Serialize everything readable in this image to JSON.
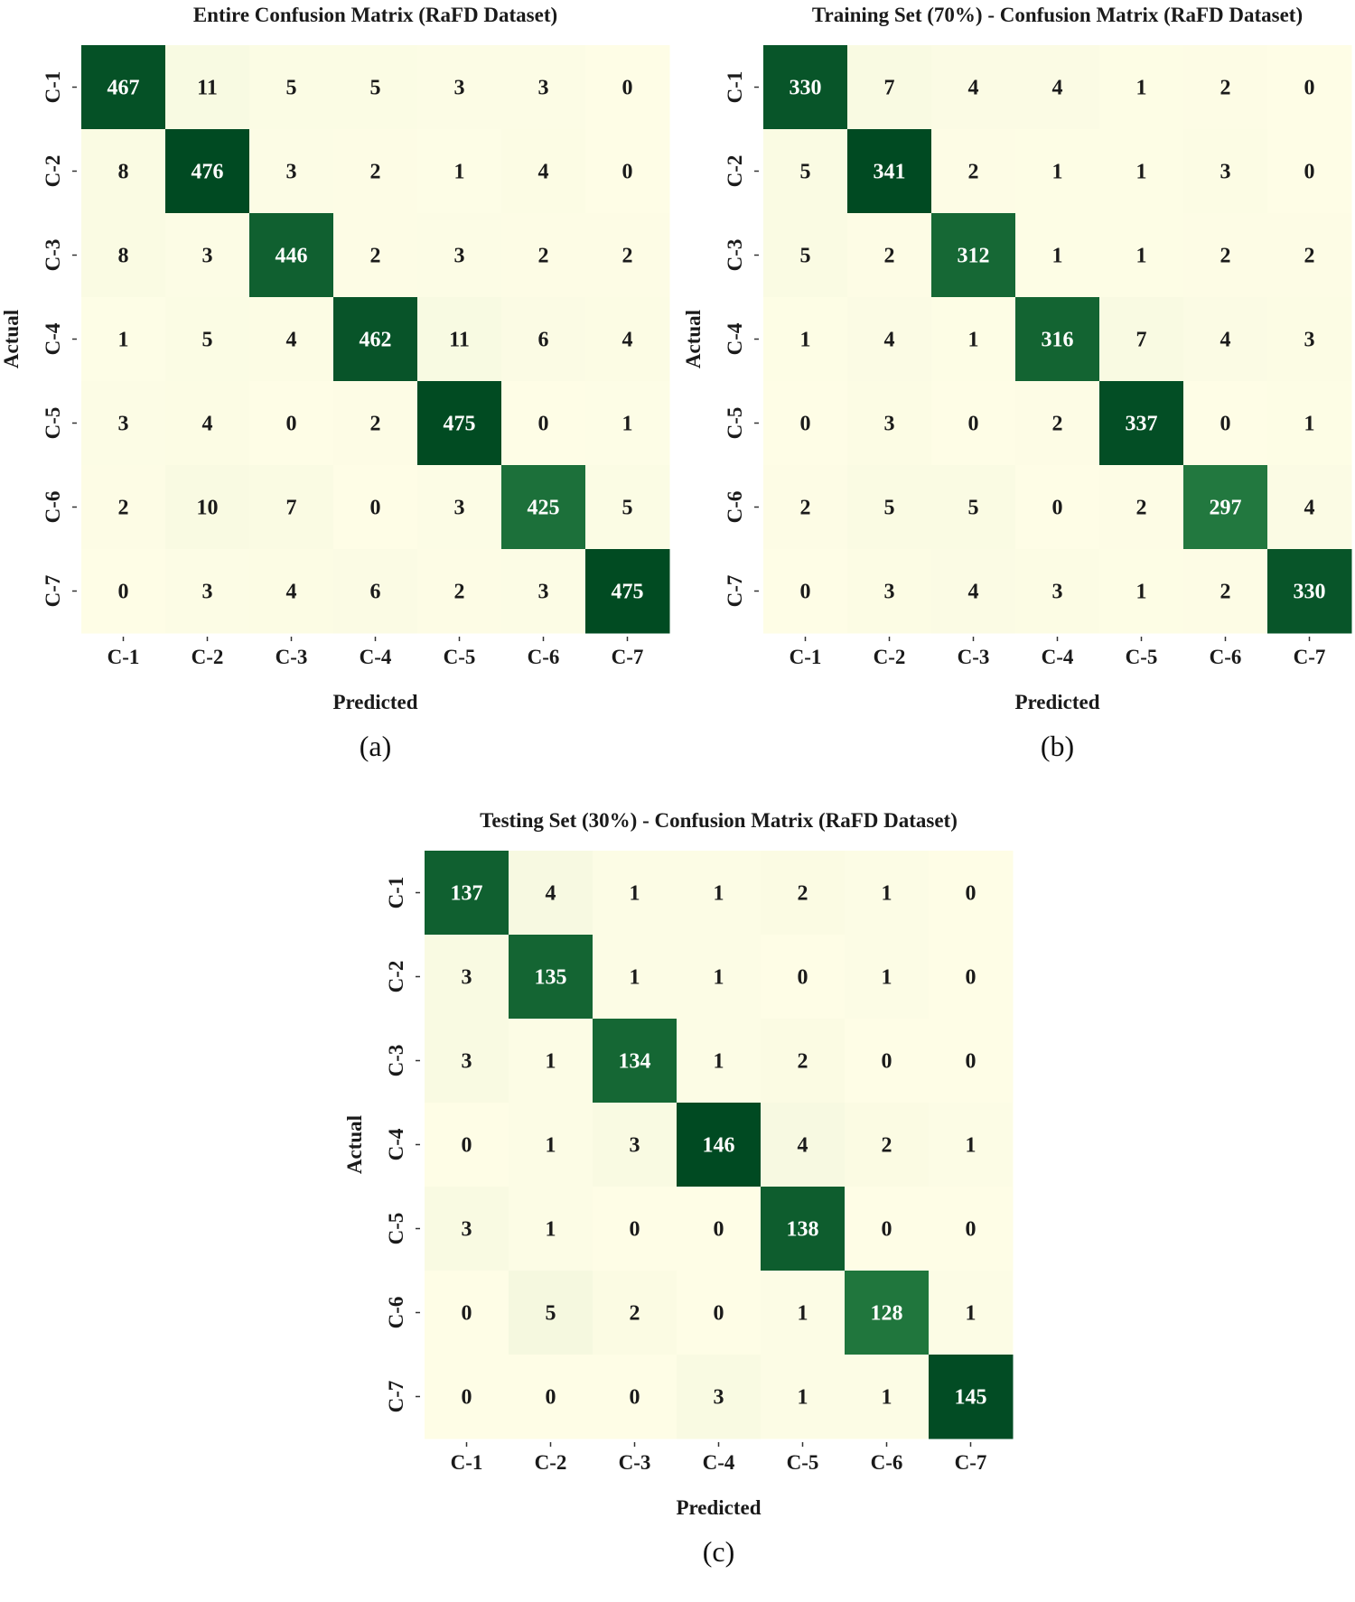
{
  "colors": {
    "low": "#fefde6",
    "mid": "#2f8a4a",
    "high": "#004a22",
    "text_dark": "#1a1a1a",
    "text_light": "#ffffff"
  },
  "chart_data": [
    {
      "type": "heatmap",
      "title": "Entire Confusion Matrix (RaFD Dataset)",
      "xlabel": "Predicted",
      "ylabel": "Actual",
      "caption": "(a)",
      "x_categories": [
        "C-1",
        "C-2",
        "C-3",
        "C-4",
        "C-5",
        "C-6",
        "C-7"
      ],
      "y_categories": [
        "C-1",
        "C-2",
        "C-3",
        "C-4",
        "C-5",
        "C-6",
        "C-7"
      ],
      "values": [
        [
          467,
          11,
          5,
          5,
          3,
          3,
          0
        ],
        [
          8,
          476,
          3,
          2,
          1,
          4,
          0
        ],
        [
          8,
          3,
          446,
          2,
          3,
          2,
          2
        ],
        [
          1,
          5,
          4,
          462,
          11,
          6,
          4
        ],
        [
          3,
          4,
          0,
          2,
          475,
          0,
          1
        ],
        [
          2,
          10,
          7,
          0,
          3,
          425,
          5
        ],
        [
          0,
          3,
          4,
          6,
          2,
          3,
          475
        ]
      ],
      "colorbar": false
    },
    {
      "type": "heatmap",
      "title": "Training Set (70%) - Confusion Matrix (RaFD Dataset)",
      "xlabel": "Predicted",
      "ylabel": "Actual",
      "caption": "(b)",
      "x_categories": [
        "C-1",
        "C-2",
        "C-3",
        "C-4",
        "C-5",
        "C-6",
        "C-7"
      ],
      "y_categories": [
        "C-1",
        "C-2",
        "C-3",
        "C-4",
        "C-5",
        "C-6",
        "C-7"
      ],
      "values": [
        [
          330,
          7,
          4,
          4,
          1,
          2,
          0
        ],
        [
          5,
          341,
          2,
          1,
          1,
          3,
          0
        ],
        [
          5,
          2,
          312,
          1,
          1,
          2,
          2
        ],
        [
          1,
          4,
          1,
          316,
          7,
          4,
          3
        ],
        [
          0,
          3,
          0,
          2,
          337,
          0,
          1
        ],
        [
          2,
          5,
          5,
          0,
          2,
          297,
          4
        ],
        [
          0,
          3,
          4,
          3,
          1,
          2,
          330
        ]
      ],
      "colorbar": false
    },
    {
      "type": "heatmap",
      "title": "Testing Set (30%) - Confusion Matrix (RaFD Dataset)",
      "xlabel": "Predicted",
      "ylabel": "Actual",
      "caption": "(c)",
      "x_categories": [
        "C-1",
        "C-2",
        "C-3",
        "C-4",
        "C-5",
        "C-6",
        "C-7"
      ],
      "y_categories": [
        "C-1",
        "C-2",
        "C-3",
        "C-4",
        "C-5",
        "C-6",
        "C-7"
      ],
      "values": [
        [
          137,
          4,
          1,
          1,
          2,
          1,
          0
        ],
        [
          3,
          135,
          1,
          1,
          0,
          1,
          0
        ],
        [
          3,
          1,
          134,
          1,
          2,
          0,
          0
        ],
        [
          0,
          1,
          3,
          146,
          4,
          2,
          1
        ],
        [
          3,
          1,
          0,
          0,
          138,
          0,
          0
        ],
        [
          0,
          5,
          2,
          0,
          1,
          128,
          1
        ],
        [
          0,
          0,
          0,
          3,
          1,
          1,
          145
        ]
      ],
      "colorbar": false
    }
  ]
}
